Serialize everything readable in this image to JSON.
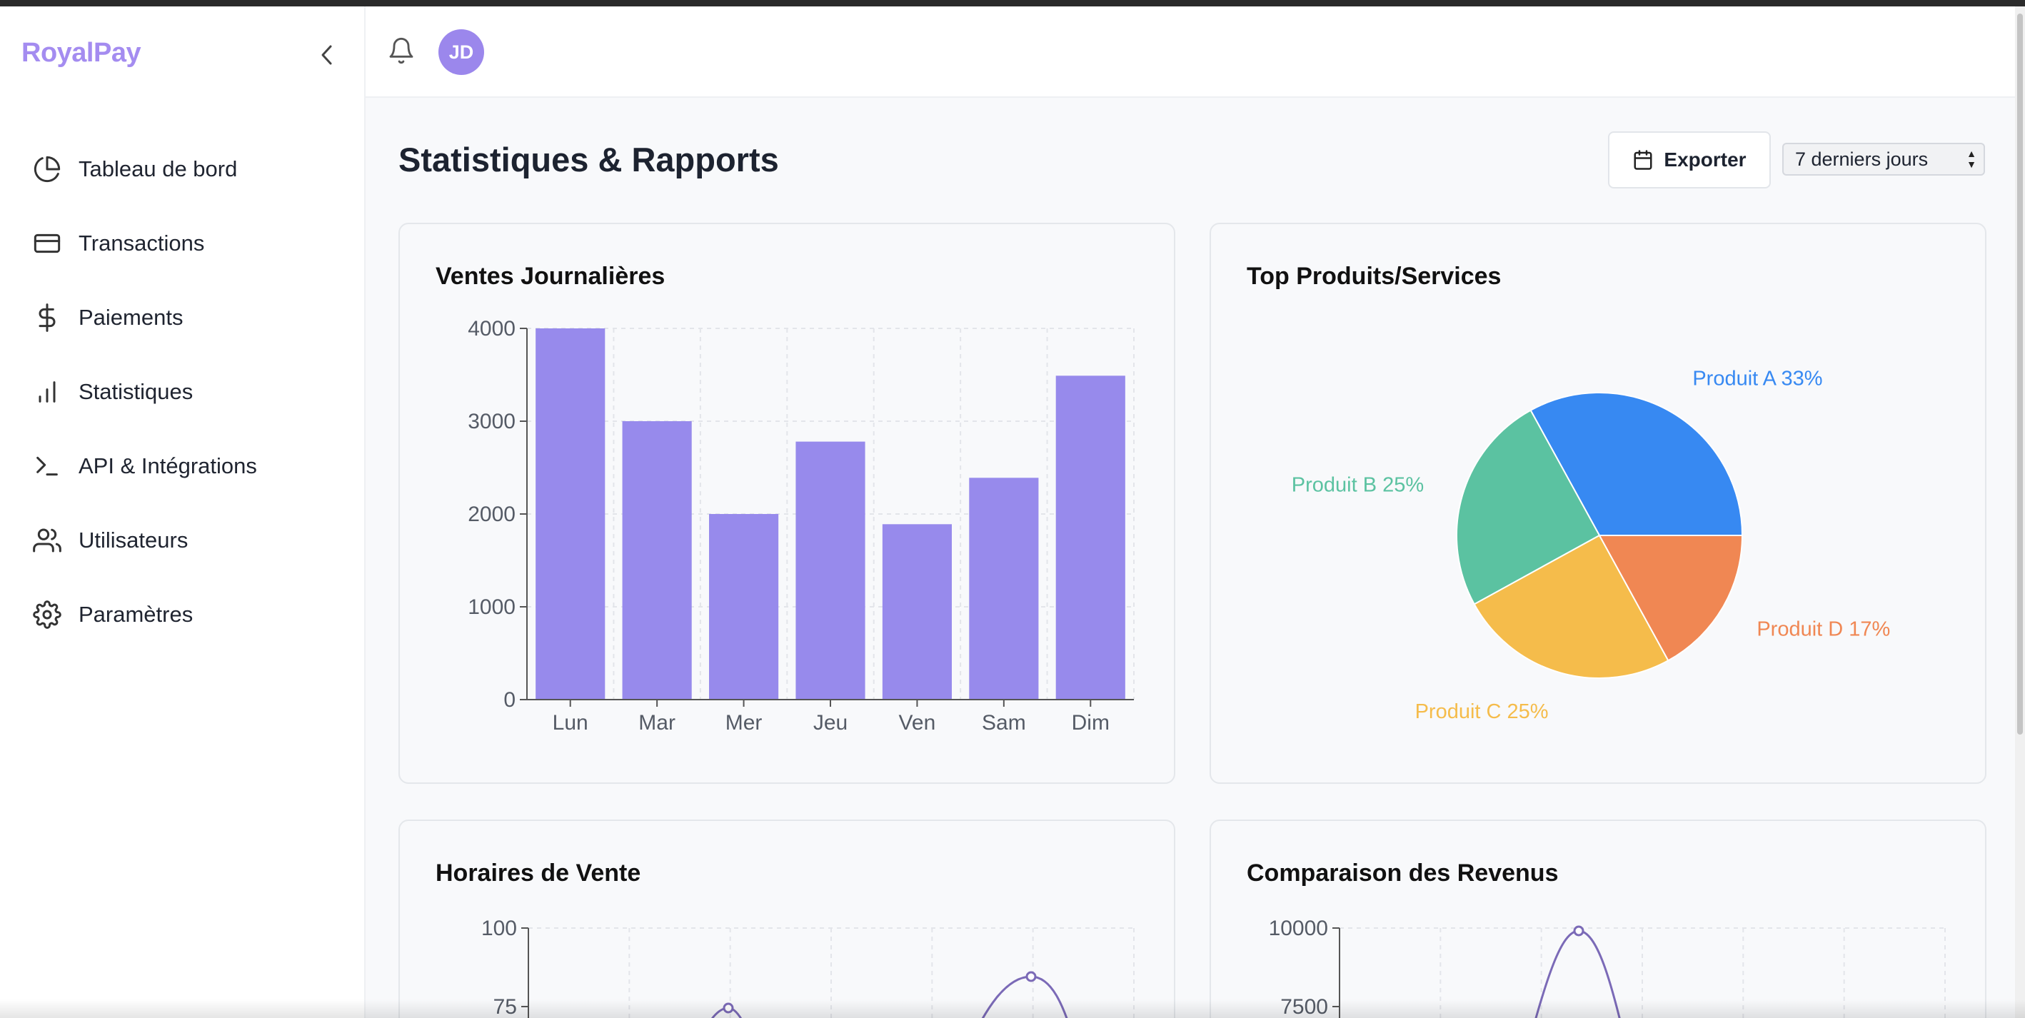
{
  "app": {
    "brand": "RoyalPay"
  },
  "sidebar": {
    "items": [
      {
        "label": "Tableau de bord",
        "icon": "pie-chart-icon"
      },
      {
        "label": "Transactions",
        "icon": "credit-card-icon"
      },
      {
        "label": "Paiements",
        "icon": "dollar-icon"
      },
      {
        "label": "Statistiques",
        "icon": "bar-chart-icon"
      },
      {
        "label": "API & Intégrations",
        "icon": "terminal-icon"
      },
      {
        "label": "Utilisateurs",
        "icon": "users-icon"
      },
      {
        "label": "Paramètres",
        "icon": "gear-icon"
      }
    ]
  },
  "header": {
    "avatar_initials": "JD"
  },
  "page": {
    "title": "Statistiques & Rapports",
    "export_label": "Exporter",
    "period_selected": "7 derniers jours"
  },
  "cards": {
    "sales": {
      "title": "Ventes Journalières"
    },
    "products": {
      "title": "Top Produits/Services"
    },
    "hours": {
      "title": "Horaires de Vente"
    },
    "revenue": {
      "title": "Comparaison des Revenus"
    }
  },
  "colors": {
    "brand": "#a48cf0",
    "bar": "#978aec",
    "line": "#7b6ab7",
    "pie": [
      "#3789f2",
      "#5bc2a1",
      "#f5bc4b",
      "#f08753"
    ]
  },
  "chart_data": [
    {
      "type": "bar",
      "title": "Ventes Journalières",
      "categories": [
        "Lun",
        "Mar",
        "Mer",
        "Jeu",
        "Ven",
        "Sam",
        "Dim"
      ],
      "values": [
        4000,
        3000,
        2000,
        2780,
        1890,
        2390,
        3490
      ],
      "yticks": [
        0,
        1000,
        2000,
        3000,
        4000
      ],
      "ylim": [
        0,
        4000
      ],
      "grid": true
    },
    {
      "type": "pie",
      "title": "Top Produits/Services",
      "slices": [
        {
          "label": "Produit A",
          "value": 33,
          "pct_label": "33%"
        },
        {
          "label": "Produit B",
          "value": 25,
          "pct_label": "25%"
        },
        {
          "label": "Produit C",
          "value": 25,
          "pct_label": "25%"
        },
        {
          "label": "Produit D",
          "value": 17,
          "pct_label": "17%"
        }
      ]
    },
    {
      "type": "line",
      "title": "Horaires de Vente",
      "yticks_visible": [
        "100",
        "75"
      ],
      "ylim": [
        0,
        100
      ],
      "points": [
        {
          "x": 3,
          "y": 75
        },
        {
          "x": 6,
          "y": 85
        }
      ],
      "partially_visible": true
    },
    {
      "type": "line",
      "title": "Comparaison des Revenus",
      "yticks_visible": [
        "10000",
        "7500"
      ],
      "ylim": [
        0,
        10000
      ],
      "points": [
        {
          "x": 3,
          "y": 10000
        }
      ],
      "partially_visible": true
    }
  ]
}
